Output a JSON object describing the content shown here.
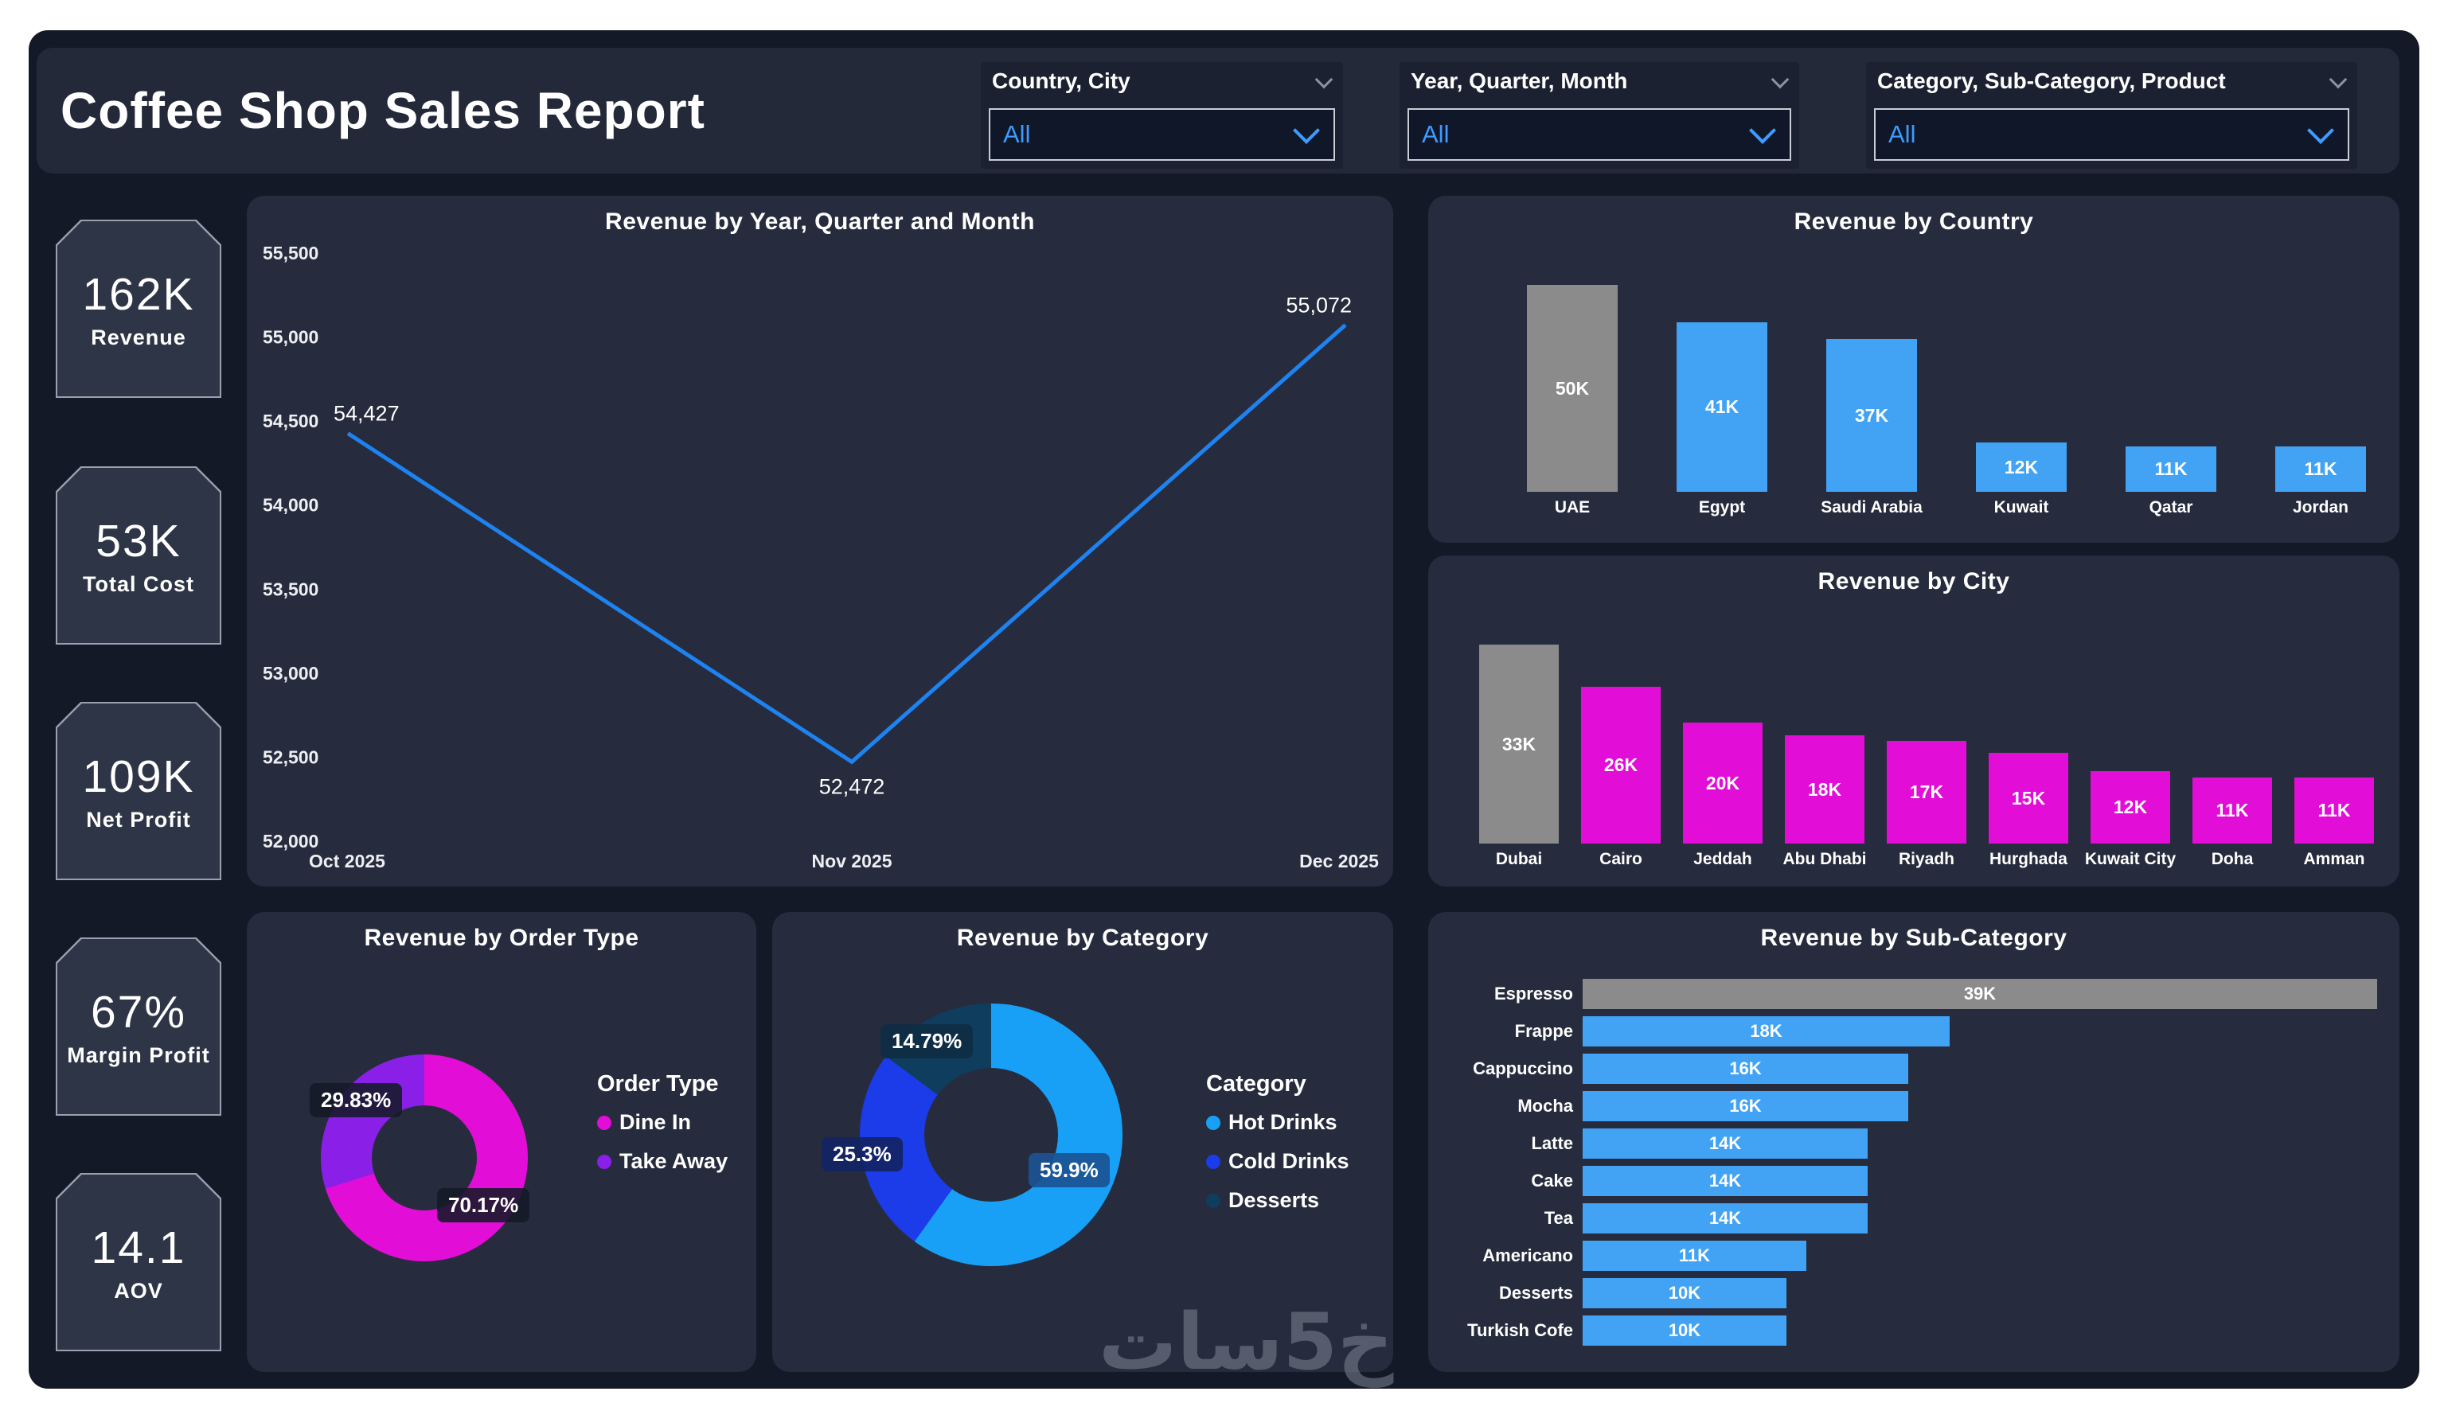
{
  "watermark": "خ5سات",
  "header": {
    "title": "Coffee Shop Sales Report",
    "slicers": [
      {
        "label": "Country, City",
        "value": "All"
      },
      {
        "label": "Year, Quarter, Month",
        "value": "All"
      },
      {
        "label": "Category, Sub-Category, Product",
        "value": "All"
      }
    ]
  },
  "kpis": [
    {
      "value": "162K",
      "label": "Revenue"
    },
    {
      "value": "53K",
      "label": "Total Cost"
    },
    {
      "value": "109K",
      "label": "Net Profit"
    },
    {
      "value": "67%",
      "label": "Margin Profit"
    },
    {
      "value": "14.1",
      "label": "AOV"
    }
  ],
  "colors": {
    "accent_blue": "#42A3F5",
    "neutral_gray": "#8B8B8B",
    "magenta": "#E20DD6",
    "purple": "#8A20E8",
    "hot_drinks_blue": "#18A0F6",
    "cold_drinks_blue": "#1C3BE9",
    "desserts_navy": "#0F3D5E",
    "line_blue": "#1E82F0"
  },
  "chart_data": [
    {
      "type": "line",
      "title": "Revenue by Year, Quarter and Month",
      "x": [
        "Oct 2025",
        "Nov 2025",
        "Dec 2025"
      ],
      "values": [
        54427,
        52472,
        55072
      ],
      "point_labels": [
        "54,427",
        "52,472",
        "55,072"
      ],
      "ylim": [
        52000,
        55500
      ],
      "yticks": [
        55500,
        55000,
        54500,
        54000,
        53500,
        53000,
        52500,
        52000
      ],
      "ytick_labels": [
        "55,500",
        "55,000",
        "54,500",
        "54,000",
        "53,500",
        "53,000",
        "52,500",
        "52,000"
      ],
      "grid": false,
      "legend": "none",
      "line_color": "#1E82F0"
    },
    {
      "type": "bar",
      "title": "Revenue by Country",
      "categories": [
        "UAE",
        "Egypt",
        "Saudi Arabia",
        "Kuwait",
        "Qatar",
        "Jordan"
      ],
      "values": [
        50,
        41,
        37,
        12,
        11,
        11
      ],
      "bar_labels": [
        "50K",
        "41K",
        "37K",
        "12K",
        "11K",
        "11K"
      ],
      "unit": "K",
      "highlight_index": 0,
      "highlight_color": "#8B8B8B",
      "bar_color": "#42A3F5"
    },
    {
      "type": "bar",
      "title": "Revenue by City",
      "categories": [
        "Dubai",
        "Cairo",
        "Jeddah",
        "Abu Dhabi",
        "Riyadh",
        "Hurghada",
        "Kuwait City",
        "Doha",
        "Amman"
      ],
      "values": [
        33,
        26,
        20,
        18,
        17,
        15,
        12,
        11,
        11
      ],
      "bar_labels": [
        "33K",
        "26K",
        "20K",
        "18K",
        "17K",
        "15K",
        "12K",
        "11K",
        "11K"
      ],
      "unit": "K",
      "highlight_index": 0,
      "highlight_color": "#8B8B8B",
      "bar_color": "#E20DD6"
    },
    {
      "type": "pie",
      "title": "Revenue by Order Type",
      "legend_title": "Order Type",
      "segments": [
        {
          "label": "Dine In",
          "pct": 70.17,
          "pct_label": "70.17%",
          "color": "#E20DD6"
        },
        {
          "label": "Take Away",
          "pct": 29.83,
          "pct_label": "29.83%",
          "color": "#8A20E8"
        }
      ]
    },
    {
      "type": "pie",
      "title": "Revenue by Category",
      "legend_title": "Category",
      "segments": [
        {
          "label": "Hot Drinks",
          "pct": 59.9,
          "pct_label": "59.9%",
          "color": "#18A0F6"
        },
        {
          "label": "Cold Drinks",
          "pct": 25.3,
          "pct_label": "25.3%",
          "color": "#1C3BE9"
        },
        {
          "label": "Desserts",
          "pct": 14.79,
          "pct_label": "14.79%",
          "color": "#0F3D5E"
        }
      ]
    },
    {
      "type": "bar-horizontal",
      "title": "Revenue by Sub-Category",
      "categories": [
        "Espresso",
        "Frappe",
        "Cappuccino",
        "Mocha",
        "Latte",
        "Cake",
        "Tea",
        "Americano",
        "Desserts",
        "Turkish Cofe"
      ],
      "values": [
        39,
        18,
        16,
        16,
        14,
        14,
        14,
        11,
        10,
        10
      ],
      "bar_labels": [
        "39K",
        "18K",
        "16K",
        "16K",
        "14K",
        "14K",
        "14K",
        "11K",
        "10K",
        "10K"
      ],
      "unit": "K",
      "highlight_index": 0,
      "highlight_color": "#8B8B8B",
      "bar_color": "#42A3F5"
    }
  ]
}
